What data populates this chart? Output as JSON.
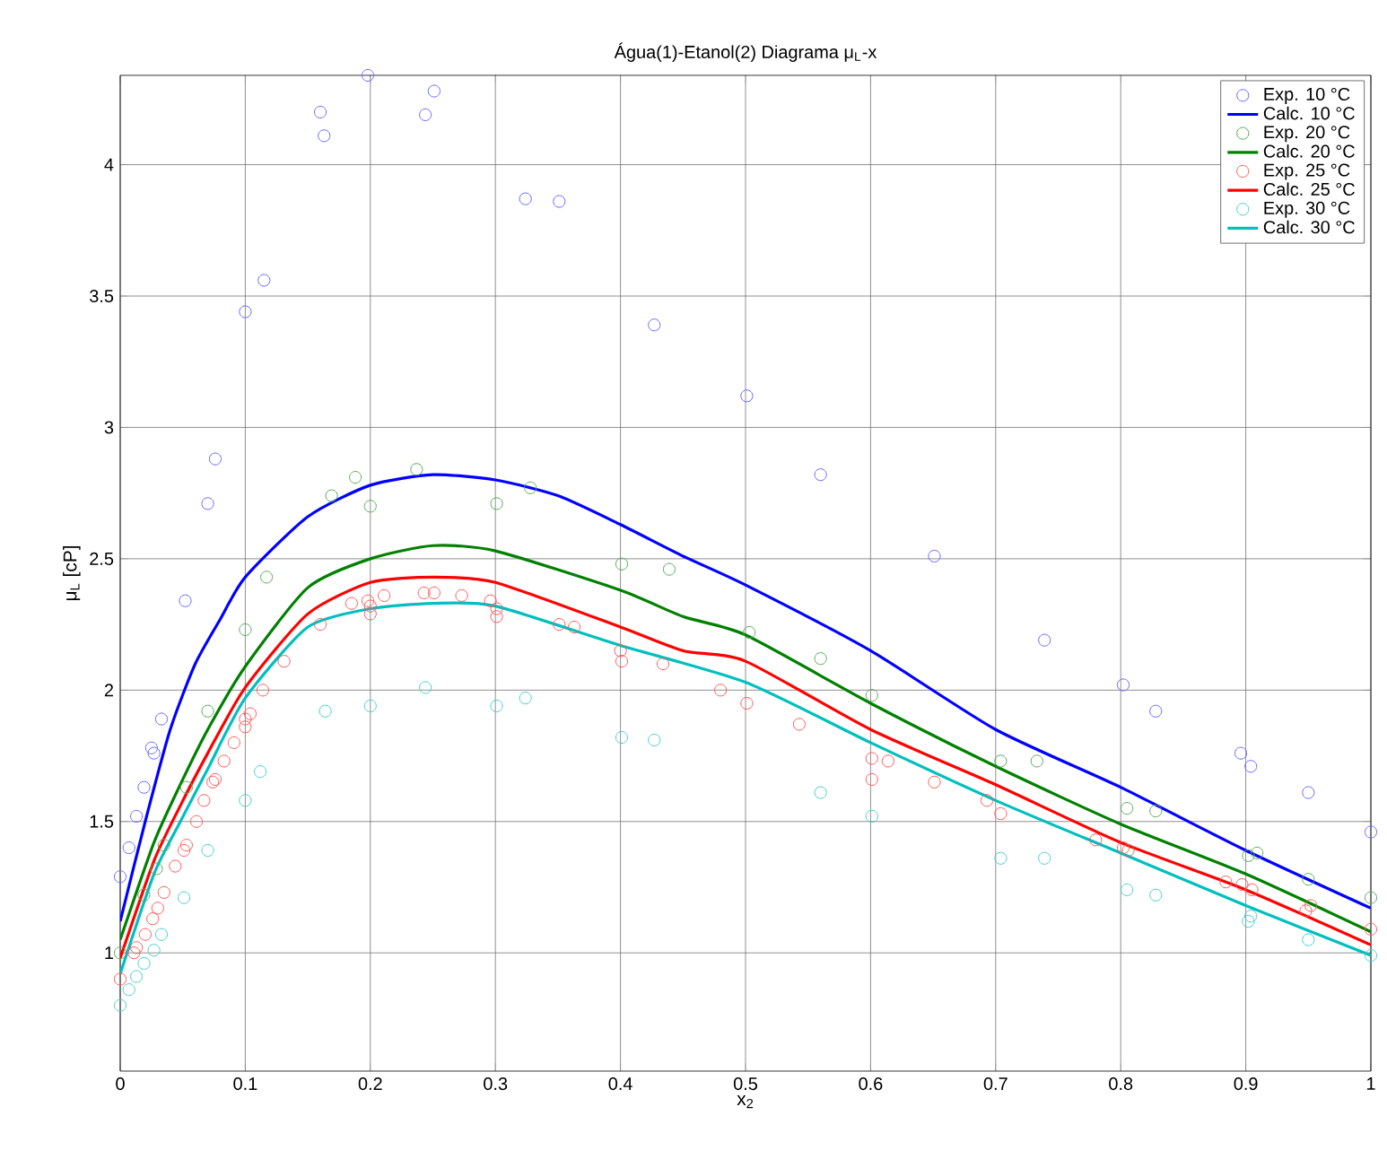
{
  "chart_data": {
    "type": "scatter",
    "title": "Água(1)-Etanol(2) Diagrama μ$_{L}$-x",
    "xlabel": "x$_{2}$",
    "ylabel": "μ$_{L}$ [cP]",
    "xlim": [
      0,
      1
    ],
    "ylim": [
      0.55,
      4.34
    ],
    "xticks": [
      0,
      0.1,
      0.2,
      0.3,
      0.4,
      0.5,
      0.6,
      0.7,
      0.8,
      0.9,
      1
    ],
    "yticks": [
      1,
      1.5,
      2,
      2.5,
      3,
      3.5,
      4
    ],
    "grid": true,
    "legend": "top right",
    "series": [
      {
        "name": "Exp. 10 °C",
        "marker": "circle",
        "color": "#6666ff",
        "x": [
          0.198,
          0.16,
          0.163,
          0.244,
          0.251,
          0.324,
          0.351,
          0.115,
          0.1,
          0.427,
          0.076,
          0.07,
          0.052,
          0.501,
          0.56,
          0.651,
          0.739,
          0.802,
          0.828,
          0.896,
          0.904,
          0.95,
          1.0,
          0.033,
          0.025,
          0.027,
          0.019,
          0.013,
          0.007,
          0.0
        ],
        "values": [
          4.34,
          4.2,
          4.11,
          4.19,
          4.28,
          3.87,
          3.86,
          3.56,
          3.44,
          3.39,
          2.88,
          2.71,
          2.34,
          3.12,
          2.82,
          2.51,
          2.19,
          2.02,
          1.92,
          1.76,
          1.71,
          1.61,
          1.46,
          1.89,
          1.78,
          1.76,
          1.63,
          1.52,
          1.4,
          1.29
        ]
      },
      {
        "name": "Calc. 10 °C",
        "type": "line",
        "marker": "none",
        "line_style": "solid",
        "color": "#0000ff",
        "x": [
          0,
          0.02,
          0.04,
          0.06,
          0.08,
          0.1,
          0.15,
          0.2,
          0.25,
          0.3,
          0.35,
          0.4,
          0.45,
          0.5,
          0.6,
          0.7,
          0.8,
          0.9,
          1.0
        ],
        "values": [
          1.12,
          1.5,
          1.85,
          2.1,
          2.27,
          2.43,
          2.66,
          2.78,
          2.82,
          2.8,
          2.74,
          2.63,
          2.51,
          2.4,
          2.15,
          1.85,
          1.63,
          1.39,
          1.17
        ]
      },
      {
        "name": "Exp. 20 °C",
        "marker": "circle",
        "color": "#55aa55",
        "x": [
          0.188,
          0.169,
          0.2,
          0.237,
          0.301,
          0.328,
          0.117,
          0.1,
          0.401,
          0.439,
          0.07,
          0.053,
          0.035,
          0.029,
          0.019,
          0.0,
          0.503,
          0.56,
          0.601,
          0.704,
          0.733,
          0.805,
          0.828,
          0.902,
          0.909,
          0.95,
          1.0
        ],
        "values": [
          2.81,
          2.74,
          2.7,
          2.84,
          2.71,
          2.77,
          2.43,
          2.23,
          2.48,
          2.46,
          1.92,
          1.63,
          1.41,
          1.32,
          1.22,
          1.0,
          2.22,
          2.12,
          1.98,
          1.73,
          1.73,
          1.55,
          1.54,
          1.37,
          1.38,
          1.28,
          1.21
        ]
      },
      {
        "name": "Calc. 20 °C",
        "type": "line",
        "marker": "none",
        "line_style": "solid",
        "color": "#008000",
        "x": [
          0,
          0.027,
          0.047,
          0.07,
          0.1,
          0.15,
          0.2,
          0.25,
          0.3,
          0.4,
          0.45,
          0.5,
          0.6,
          0.7,
          0.8,
          0.9,
          1.0
        ],
        "values": [
          1.05,
          1.42,
          1.63,
          1.85,
          2.09,
          2.39,
          2.5,
          2.55,
          2.53,
          2.38,
          2.28,
          2.21,
          1.95,
          1.71,
          1.49,
          1.3,
          1.08
        ]
      },
      {
        "name": "Exp. 25 °C",
        "marker": "circle",
        "color": "#ff5555",
        "x": [
          0.0,
          0.011,
          0.013,
          0.02,
          0.026,
          0.03,
          0.035,
          0.044,
          0.051,
          0.053,
          0.061,
          0.067,
          0.074,
          0.076,
          0.083,
          0.091,
          0.1,
          0.1,
          0.104,
          0.114,
          0.131,
          0.16,
          0.185,
          0.198,
          0.2,
          0.2,
          0.211,
          0.243,
          0.251,
          0.273,
          0.296,
          0.301,
          0.301,
          0.351,
          0.363,
          0.4,
          0.401,
          0.434,
          0.48,
          0.501,
          0.543,
          0.601,
          0.614,
          0.601,
          0.651,
          0.693,
          0.704,
          0.78,
          0.802,
          0.806,
          0.884,
          0.897,
          0.905,
          0.952,
          0.948,
          1.0
        ],
        "values": [
          0.9,
          1.0,
          1.02,
          1.07,
          1.13,
          1.17,
          1.23,
          1.33,
          1.39,
          1.41,
          1.5,
          1.58,
          1.65,
          1.66,
          1.73,
          1.8,
          1.86,
          1.89,
          1.91,
          2.0,
          2.11,
          2.25,
          2.33,
          2.34,
          2.32,
          2.29,
          2.36,
          2.37,
          2.37,
          2.36,
          2.34,
          2.31,
          2.28,
          2.25,
          2.24,
          2.15,
          2.11,
          2.1,
          2.0,
          1.95,
          1.87,
          1.74,
          1.73,
          1.66,
          1.65,
          1.58,
          1.53,
          1.43,
          1.4,
          1.39,
          1.27,
          1.26,
          1.24,
          1.18,
          1.16,
          1.09
        ]
      },
      {
        "name": "Calc. 25 °C",
        "type": "line",
        "marker": "none",
        "line_style": "solid",
        "color": "#ff0000",
        "x": [
          0,
          0.027,
          0.047,
          0.07,
          0.1,
          0.15,
          0.2,
          0.25,
          0.3,
          0.4,
          0.45,
          0.5,
          0.6,
          0.7,
          0.8,
          0.9,
          1.0
        ],
        "values": [
          0.98,
          1.35,
          1.55,
          1.76,
          2.01,
          2.29,
          2.41,
          2.43,
          2.41,
          2.24,
          2.15,
          2.11,
          1.85,
          1.64,
          1.42,
          1.24,
          1.03
        ]
      },
      {
        "name": "Exp. 30 °C",
        "marker": "circle",
        "color": "#44cccc",
        "x": [
          0.0,
          0.007,
          0.013,
          0.019,
          0.027,
          0.033,
          0.051,
          0.07,
          0.1,
          0.112,
          0.164,
          0.2,
          0.244,
          0.301,
          0.324,
          0.401,
          0.427,
          0.56,
          0.601,
          0.704,
          0.739,
          0.805,
          0.828,
          0.902,
          0.904,
          0.95,
          1.0
        ],
        "values": [
          0.8,
          0.86,
          0.91,
          0.96,
          1.01,
          1.07,
          1.21,
          1.39,
          1.58,
          1.69,
          1.92,
          1.94,
          2.01,
          1.94,
          1.97,
          1.82,
          1.81,
          1.61,
          1.52,
          1.36,
          1.36,
          1.24,
          1.22,
          1.12,
          1.14,
          1.05,
          0.99
        ]
      },
      {
        "name": "Calc. 30 °C",
        "type": "line",
        "marker": "none",
        "line_style": "solid",
        "color": "#00bfbf",
        "x": [
          0,
          0.027,
          0.047,
          0.07,
          0.1,
          0.15,
          0.2,
          0.25,
          0.3,
          0.4,
          0.5,
          0.6,
          0.7,
          0.8,
          0.9,
          1.0
        ],
        "values": [
          0.92,
          1.3,
          1.49,
          1.7,
          1.97,
          2.24,
          2.31,
          2.33,
          2.32,
          2.17,
          2.03,
          1.8,
          1.58,
          1.38,
          1.18,
          0.99
        ]
      }
    ]
  }
}
